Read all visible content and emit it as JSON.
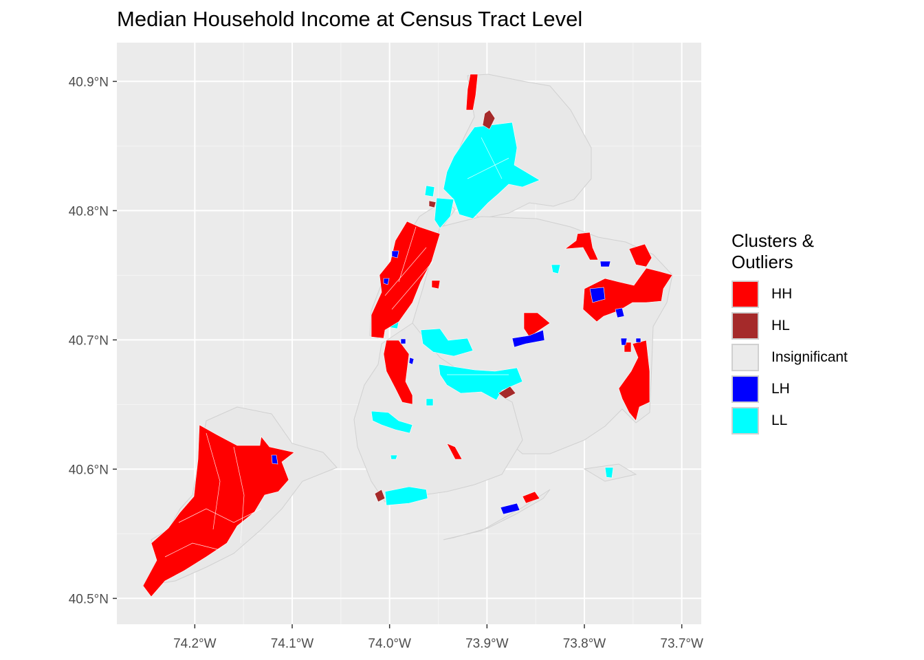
{
  "title": "Median Household Income at Census Tract Level",
  "x_ticks": [
    "74.2°W",
    "74.1°W",
    "74.0°W",
    "73.9°W",
    "73.8°W",
    "73.7°W"
  ],
  "y_ticks": [
    "40.9°N",
    "40.8°N",
    "40.7°N",
    "40.6°N",
    "40.5°N"
  ],
  "legend": {
    "title": "Clusters & Outliers",
    "items": [
      {
        "label": "HH",
        "color": "#ff0000"
      },
      {
        "label": "HL",
        "color": "#a52a2a"
      },
      {
        "label": "Insignificant",
        "color": "#ebebeb"
      },
      {
        "label": "LH",
        "color": "#0000ff"
      },
      {
        "label": "LL",
        "color": "#00ffff"
      }
    ]
  },
  "chart_data": {
    "type": "choropleth",
    "title": "Median Household Income at Census Tract Level",
    "x_axis": {
      "values": [
        -74.2,
        -74.1,
        -74.0,
        -73.9,
        -73.8,
        -73.7
      ],
      "range": [
        -74.28,
        -73.68
      ]
    },
    "y_axis": {
      "values": [
        40.9,
        40.8,
        40.7,
        40.6,
        40.5
      ],
      "range": [
        40.48,
        40.93
      ]
    },
    "grid": true,
    "legend_placement": "right",
    "categories": [
      "HH",
      "HL",
      "Insignificant",
      "LH",
      "LL"
    ],
    "colors": {
      "HH": "#ff0000",
      "HL": "#a52a2a",
      "Insignificant": "#ebebeb",
      "LH": "#0000ff",
      "LL": "#00ffff"
    }
  }
}
